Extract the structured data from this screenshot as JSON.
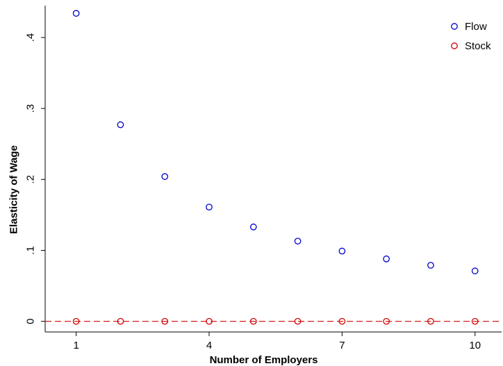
{
  "chart_data": {
    "type": "scatter",
    "title": "",
    "xlabel": "Number of Employers",
    "ylabel": "Elasticity of Wage",
    "xlim": [
      0.3,
      10.6
    ],
    "ylim": [
      -0.015,
      0.445
    ],
    "xticks": [
      {
        "value": 1,
        "label": "1"
      },
      {
        "value": 4,
        "label": "4"
      },
      {
        "value": 7,
        "label": "7"
      },
      {
        "value": 10,
        "label": "10"
      }
    ],
    "yticks": [
      {
        "value": 0,
        "label": "0"
      },
      {
        "value": 0.1,
        "label": ".1"
      },
      {
        "value": 0.2,
        "label": ".2"
      },
      {
        "value": 0.3,
        "label": ".3"
      },
      {
        "value": 0.4,
        "label": ".4"
      }
    ],
    "grid": false,
    "legend_position": "top-right",
    "reference_line": {
      "y": 0,
      "color": "#d00000",
      "style": "dashed"
    },
    "series": [
      {
        "name": "Flow",
        "color": "#0000cc",
        "marker": "hollow-circle",
        "x": [
          1,
          2,
          3,
          4,
          5,
          6,
          7,
          8,
          9,
          10
        ],
        "y": [
          0.434,
          0.277,
          0.204,
          0.161,
          0.133,
          0.113,
          0.099,
          0.088,
          0.079,
          0.071
        ]
      },
      {
        "name": "Stock",
        "color": "#d00000",
        "marker": "hollow-circle",
        "x": [
          1,
          2,
          3,
          4,
          5,
          6,
          7,
          8,
          9,
          10
        ],
        "y": [
          0,
          0,
          0,
          0,
          0,
          0,
          0,
          0,
          0,
          0
        ]
      }
    ]
  }
}
